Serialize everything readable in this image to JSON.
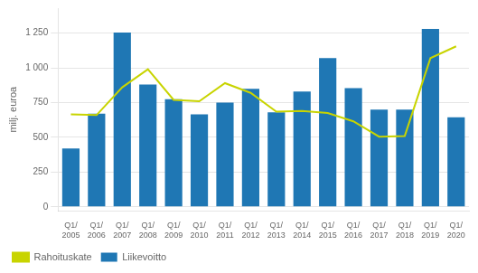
{
  "chart_data": {
    "type": "bar",
    "categories": [
      "Q1/\n2005",
      "Q1/\n2006",
      "Q1/\n2007",
      "Q1/\n2008",
      "Q1/\n2009",
      "Q1/\n2010",
      "Q1/\n2011",
      "Q1/\n2012",
      "Q1/\n2013",
      "Q1/\n2014",
      "Q1/\n2015",
      "Q1/\n2016",
      "Q1/\n2017",
      "Q1/\n2018",
      "Q1/\n2019",
      "Q1/\n2020"
    ],
    "series": [
      {
        "name": "Liikevoitto",
        "type": "bar",
        "color": "#1f77b4",
        "values": [
          420,
          670,
          1255,
          880,
          775,
          665,
          750,
          850,
          680,
          830,
          1070,
          855,
          700,
          700,
          1280,
          645
        ]
      },
      {
        "name": "Rahoituskate",
        "type": "line",
        "color": "#c8d400",
        "values": [
          665,
          660,
          860,
          990,
          770,
          760,
          890,
          820,
          685,
          690,
          675,
          615,
          505,
          510,
          1070,
          1155
        ]
      }
    ],
    "ylabel": "milj. euroa",
    "ylim": [
      -30,
      1430
    ],
    "yticks": [
      0,
      250,
      500,
      750,
      {
        "value": 1000,
        "label": "1 000"
      },
      {
        "value": 1250,
        "label": "1 250"
      }
    ],
    "grid": true,
    "legend": "lower left"
  }
}
